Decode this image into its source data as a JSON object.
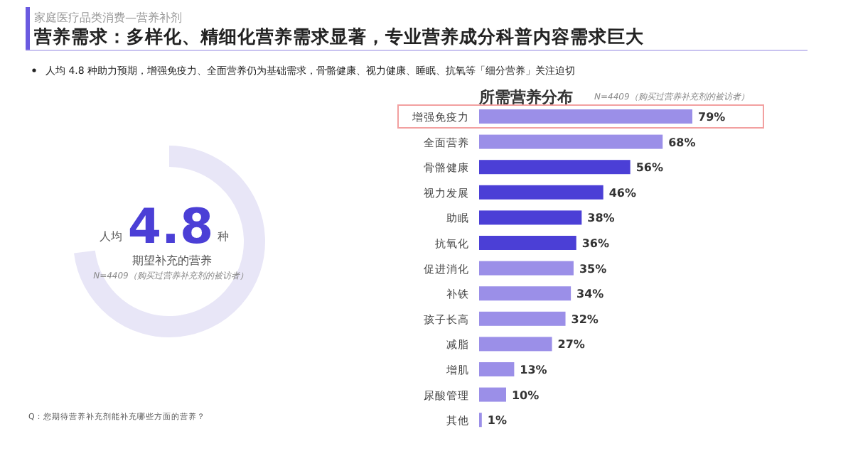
{
  "chart_data": {
    "type": "bar",
    "orientation": "horizontal",
    "title": "所需营养分布",
    "subtitle": "N=4409（购买过营养补充剂的被访者）",
    "categories": [
      "增强免疫力",
      "全面营养",
      "骨骼健康",
      "视力发展",
      "助眠",
      "抗氧化",
      "促进消化",
      "补铁",
      "孩子长高",
      "减脂",
      "增肌",
      "尿酸管理",
      "其他"
    ],
    "values": [
      79,
      68,
      56,
      46,
      38,
      36,
      35,
      34,
      32,
      27,
      13,
      10,
      1
    ],
    "colors": [
      "#9b8fe8",
      "#9b8fe8",
      "#4b3fd6",
      "#4b3fd6",
      "#4b3fd6",
      "#4b3fd6",
      "#9b8fe8",
      "#9b8fe8",
      "#9b8fe8",
      "#9b8fe8",
      "#9b8fe8",
      "#9b8fe8",
      "#9b8fe8"
    ],
    "value_labels": [
      "79%",
      "68%",
      "56%",
      "46%",
      "38%",
      "36%",
      "35%",
      "34%",
      "32%",
      "27%",
      "13%",
      "10%",
      "1%"
    ],
    "annotations": [
      "家庭医疗品类消费—营养补剂",
      "营养需求：多样化、精细化营养需求显著，专业营养成分科普内容需求巨大",
      "人均 4.8 种助力预期，增强免疫力、全面营养仍为基础需求，骨骼健康、视力健康、睡眠、抗氧等「细分营养」关注迫切",
      "人均",
      "4.8",
      "种",
      "期望补充的营养",
      "N=4409（购买过营养补充剂的被访者）",
      "Q：您期待营养补充剂能补充哪些方面的营养？"
    ]
  }
}
